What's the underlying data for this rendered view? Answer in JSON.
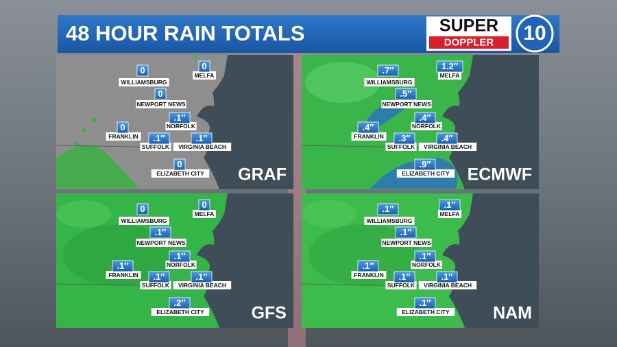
{
  "header": {
    "title": "48 HOUR RAIN TOTALS"
  },
  "logo": {
    "line1": "SUPER",
    "line2": "DOPPLER",
    "number": "10"
  },
  "panels": [
    {
      "model": "GRAF",
      "cities": [
        {
          "name": "WILLIAMSBURG",
          "value": "0"
        },
        {
          "name": "MELFA",
          "value": "0"
        },
        {
          "name": "NEWPORT NEWS",
          "value": "0"
        },
        {
          "name": "NORFOLK",
          "value": ".1″"
        },
        {
          "name": "FRANKLIN",
          "value": "0"
        },
        {
          "name": "SUFFOLK",
          "value": ".1″"
        },
        {
          "name": "VIRGINIA BEACH",
          "value": ".1″"
        },
        {
          "name": "ELIZABETH CITY",
          "value": "0"
        }
      ]
    },
    {
      "model": "ECMWF",
      "cities": [
        {
          "name": "WILLIAMSBURG",
          "value": ".7″"
        },
        {
          "name": "MELFA",
          "value": "1.2″"
        },
        {
          "name": "NEWPORT NEWS",
          "value": ".5″"
        },
        {
          "name": "NORFOLK",
          "value": ".4″"
        },
        {
          "name": "FRANKLIN",
          "value": ".4″"
        },
        {
          "name": "SUFFOLK",
          "value": ".3″"
        },
        {
          "name": "VIRGINIA BEACH",
          "value": ".4″"
        },
        {
          "name": "ELIZABETH CITY",
          "value": ".9″"
        }
      ]
    },
    {
      "model": "GFS",
      "cities": [
        {
          "name": "WILLIAMSBURG",
          "value": "0"
        },
        {
          "name": "MELFA",
          "value": "0"
        },
        {
          "name": "NEWPORT NEWS",
          "value": ".1″"
        },
        {
          "name": "NORFOLK",
          "value": ".1″"
        },
        {
          "name": "FRANKLIN",
          "value": ".1″"
        },
        {
          "name": "SUFFOLK",
          "value": ".1″"
        },
        {
          "name": "VIRGINIA BEACH",
          "value": ".1″"
        },
        {
          "name": "ELIZABETH CITY",
          "value": ".2″"
        }
      ]
    },
    {
      "model": "NAM",
      "cities": [
        {
          "name": "WILLIAMSBURG",
          "value": ".1″"
        },
        {
          "name": "MELFA",
          "value": ".1″"
        },
        {
          "name": "NEWPORT NEWS",
          "value": ".1″"
        },
        {
          "name": "NORFOLK",
          "value": ".1″"
        },
        {
          "name": "FRANKLIN",
          "value": ".1″"
        },
        {
          "name": "SUFFOLK",
          "value": ".1″"
        },
        {
          "name": "VIRGINIA BEACH",
          "value": ".1″"
        },
        {
          "name": "ELIZABETH CITY",
          "value": ".1″"
        }
      ]
    }
  ]
}
